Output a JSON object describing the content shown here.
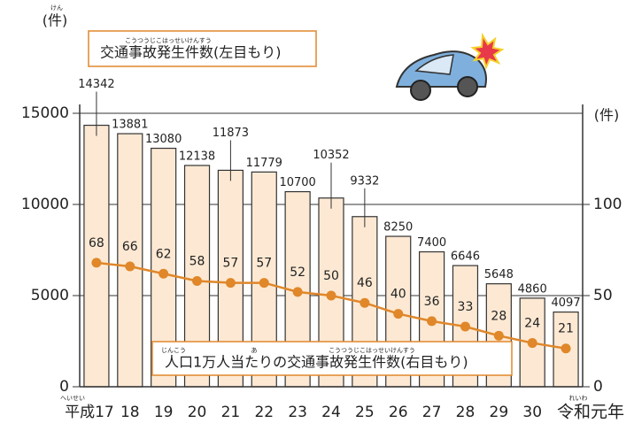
{
  "chart_data": {
    "type": "bar",
    "categories": [
      "平成17",
      "18",
      "19",
      "20",
      "21",
      "22",
      "23",
      "24",
      "25",
      "26",
      "27",
      "28",
      "29",
      "30",
      "令和元年"
    ],
    "series": [
      {
        "name": "交通事故発生件数(左目もり)",
        "type": "bar",
        "color": "#fde9d3",
        "values": [
          14342,
          13881,
          13080,
          12138,
          11873,
          11779,
          10700,
          10352,
          9332,
          8250,
          7400,
          6646,
          5648,
          4860,
          4097
        ]
      },
      {
        "name": "人口1万人当たりの交通事故発生件数(右目もり)",
        "type": "line",
        "axis": "y2",
        "color": "#e0872a",
        "values": [
          68,
          66,
          62,
          58,
          57,
          57,
          52,
          50,
          46,
          40,
          36,
          33,
          28,
          24,
          21
        ]
      }
    ],
    "ylim": [
      0,
      15000
    ],
    "yticks": [
      0,
      5000,
      10000,
      15000
    ],
    "y2lim": [
      0,
      150
    ],
    "y2ticks": [
      0,
      50,
      100
    ],
    "y_unit": "(件)",
    "y2_unit": "(件)",
    "grid": true,
    "ruby": {
      "y_unit": "けん",
      "series0": "こうつうじこはっせいけんすう",
      "series1a": "じんこう",
      "series1b": "あ",
      "series1c": "こうつうじこはっせいけんすう",
      "first_category": "へいせい",
      "last_category": "れいわ"
    }
  }
}
